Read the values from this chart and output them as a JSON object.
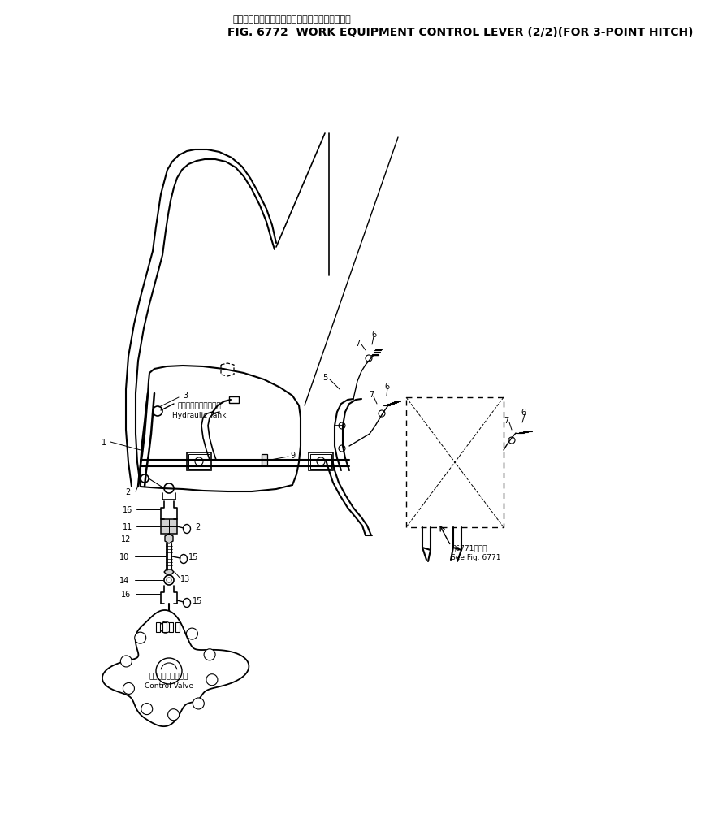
{
  "title_jp": "作　業　機　コントロールレバー　３点ヒッチ用",
  "title_en": "FIG. 6772  WORK EQUIPMENT CONTROL LEVER (2/2)(FOR 3-POINT HITCH)",
  "bg_color": "#ffffff",
  "line_color": "#000000",
  "fig_width": 6.99,
  "fig_height": 9.83,
  "hydraulic_tank_jp": "ハイドロリックタンク",
  "hydraulic_tank_en": "Hydraulic Tank",
  "control_valve_jp": "コントロールバルブ",
  "control_valve_en": "Control Valve",
  "see_fig_jp": "第6771図参照",
  "see_fig_en": "See Fig. 6771"
}
